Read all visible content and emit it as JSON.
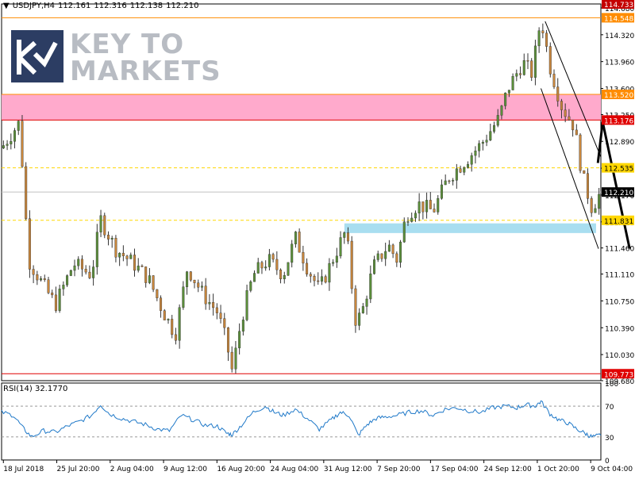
{
  "header": {
    "dropdown_icon": "triangle-down-icon",
    "symbol": "USDJPY,H4",
    "open": "112.161",
    "high": "112.316",
    "low": "112.138",
    "close": "112.210"
  },
  "logo": {
    "line1": "KEY TO",
    "line2": "MARKETS",
    "mark_color": "#2c3d63",
    "text_color": "#b8bcc3"
  },
  "rsi": {
    "label": "RSI(14) 32.1770"
  },
  "chart_data": [
    {
      "type": "candlestick",
      "symbol": "USDJPY",
      "timeframe": "H4",
      "ylim": [
        109.68,
        114.733
      ],
      "y_ticks": [
        "114.680",
        "114.320",
        "113.960",
        "113.600",
        "113.250",
        "112.890",
        "112.530",
        "112.170",
        "111.810",
        "111.460",
        "111.110",
        "110.750",
        "110.390",
        "110.030",
        "109.680"
      ],
      "x_ticks": [
        "18 Jul 2018",
        "25 Jul 20:00",
        "2 Aug 04:00",
        "9 Aug 12:00",
        "16 Aug 20:00",
        "24 Aug 04:00",
        "31 Aug 12:00",
        "7 Sep 20:00",
        "17 Sep 04:00",
        "24 Sep 12:00",
        "1 Oct 20:00",
        "9 Oct 04:00"
      ],
      "price_path": [
        {
          "p": 0.0,
          "v": 112.8
        },
        {
          "p": 0.03,
          "v": 113.15
        },
        {
          "p": 0.045,
          "v": 111.3
        },
        {
          "p": 0.07,
          "v": 110.95
        },
        {
          "p": 0.09,
          "v": 110.7
        },
        {
          "p": 0.12,
          "v": 111.25
        },
        {
          "p": 0.15,
          "v": 111.1
        },
        {
          "p": 0.165,
          "v": 111.85
        },
        {
          "p": 0.19,
          "v": 111.45
        },
        {
          "p": 0.22,
          "v": 111.25
        },
        {
          "p": 0.245,
          "v": 111.05
        },
        {
          "p": 0.27,
          "v": 110.6
        },
        {
          "p": 0.29,
          "v": 110.3
        },
        {
          "p": 0.31,
          "v": 111.2
        },
        {
          "p": 0.335,
          "v": 110.85
        },
        {
          "p": 0.36,
          "v": 110.6
        },
        {
          "p": 0.375,
          "v": 110.2
        },
        {
          "p": 0.385,
          "v": 109.8
        },
        {
          "p": 0.4,
          "v": 110.5
        },
        {
          "p": 0.42,
          "v": 111.1
        },
        {
          "p": 0.445,
          "v": 111.3
        },
        {
          "p": 0.47,
          "v": 111.1
        },
        {
          "p": 0.49,
          "v": 111.6
        },
        {
          "p": 0.51,
          "v": 111.2
        },
        {
          "p": 0.53,
          "v": 110.9
        },
        {
          "p": 0.555,
          "v": 111.35
        },
        {
          "p": 0.575,
          "v": 111.7
        },
        {
          "p": 0.59,
          "v": 110.5
        },
        {
          "p": 0.6,
          "v": 110.55
        },
        {
          "p": 0.62,
          "v": 111.2
        },
        {
          "p": 0.645,
          "v": 111.5
        },
        {
          "p": 0.66,
          "v": 111.3
        },
        {
          "p": 0.675,
          "v": 111.9
        },
        {
          "p": 0.695,
          "v": 112.05
        },
        {
          "p": 0.72,
          "v": 111.95
        },
        {
          "p": 0.745,
          "v": 112.4
        },
        {
          "p": 0.77,
          "v": 112.6
        },
        {
          "p": 0.8,
          "v": 112.85
        },
        {
          "p": 0.83,
          "v": 113.2
        },
        {
          "p": 0.845,
          "v": 113.6
        },
        {
          "p": 0.87,
          "v": 113.95
        },
        {
          "p": 0.885,
          "v": 113.8
        },
        {
          "p": 0.9,
          "v": 114.55
        },
        {
          "p": 0.915,
          "v": 113.9
        },
        {
          "p": 0.935,
          "v": 113.35
        },
        {
          "p": 0.955,
          "v": 113.1
        },
        {
          "p": 0.97,
          "v": 112.4
        },
        {
          "p": 0.985,
          "v": 112.0
        },
        {
          "p": 1.0,
          "v": 112.21
        }
      ],
      "horizontal_levels": [
        {
          "value": 114.733,
          "label": "114.733",
          "color": "#c40000",
          "box": true,
          "line": false
        },
        {
          "value": 114.548,
          "label": "114.548",
          "color": "#ff8c00",
          "box": true,
          "line": true,
          "dash": false
        },
        {
          "value": 113.52,
          "label": "113.520",
          "color": "#ff8c00",
          "box": true,
          "line": true,
          "dash": false
        },
        {
          "value": 113.176,
          "label": "113.176",
          "color": "#e00000",
          "box": true,
          "line": true,
          "dash": false
        },
        {
          "value": 112.535,
          "label": "112.535",
          "color": "#ffd700",
          "box": true,
          "line": true,
          "dash": true
        },
        {
          "value": 112.21,
          "label": "112.210",
          "color": "#000000",
          "box": true,
          "line": true,
          "dash": false,
          "line_color": "#c0c0c0"
        },
        {
          "value": 111.831,
          "label": "111.831",
          "color": "#ffd700",
          "box": true,
          "line": true,
          "dash": true
        },
        {
          "value": 109.773,
          "label": "109.773",
          "color": "#e00000",
          "box": true,
          "line": true,
          "dash": false
        }
      ],
      "zones": [
        {
          "name": "resistance-zone",
          "y_from": 113.176,
          "y_to": 113.52,
          "p_from": 0.0,
          "p_to": 1.0,
          "color": "#ffaacc"
        },
        {
          "name": "support-zone",
          "y_from": 111.66,
          "y_to": 111.79,
          "p_from": 0.572,
          "p_to": 0.992,
          "color": "#a9def0"
        }
      ],
      "trendlines": [
        {
          "p1": 0.907,
          "v1": 114.5,
          "p2": 1.0,
          "v2": 112.68,
          "color": "#000000"
        },
        {
          "p1": 0.9,
          "v1": 113.6,
          "p2": 0.996,
          "v2": 111.45,
          "color": "#000000"
        }
      ],
      "projection_arrows": [
        {
          "p1": 0.995,
          "v1": 112.6,
          "p2": 1.003,
          "v2": 113.15
        },
        {
          "p1": 1.003,
          "v1": 113.15,
          "p2": 1.048,
          "v2": 111.45
        }
      ]
    },
    {
      "type": "line",
      "name": "RSI(14)",
      "ylim": [
        0,
        100
      ],
      "y_ticks": [
        "100",
        "70",
        "30",
        "0"
      ],
      "levels": [
        70,
        30
      ],
      "series": [
        {
          "name": "RSI(14)",
          "color": "#1e78c8",
          "values": [
            {
              "p": 0.0,
              "v": 62
            },
            {
              "p": 0.02,
              "v": 58
            },
            {
              "p": 0.035,
              "v": 42
            },
            {
              "p": 0.05,
              "v": 30
            },
            {
              "p": 0.07,
              "v": 38
            },
            {
              "p": 0.09,
              "v": 36
            },
            {
              "p": 0.11,
              "v": 44
            },
            {
              "p": 0.13,
              "v": 50
            },
            {
              "p": 0.15,
              "v": 58
            },
            {
              "p": 0.165,
              "v": 72
            },
            {
              "p": 0.18,
              "v": 60
            },
            {
              "p": 0.2,
              "v": 54
            },
            {
              "p": 0.22,
              "v": 50
            },
            {
              "p": 0.24,
              "v": 46
            },
            {
              "p": 0.26,
              "v": 40
            },
            {
              "p": 0.28,
              "v": 38
            },
            {
              "p": 0.3,
              "v": 58
            },
            {
              "p": 0.32,
              "v": 52
            },
            {
              "p": 0.34,
              "v": 45
            },
            {
              "p": 0.36,
              "v": 44
            },
            {
              "p": 0.375,
              "v": 35
            },
            {
              "p": 0.385,
              "v": 33
            },
            {
              "p": 0.4,
              "v": 45
            },
            {
              "p": 0.42,
              "v": 62
            },
            {
              "p": 0.44,
              "v": 70
            },
            {
              "p": 0.455,
              "v": 62
            },
            {
              "p": 0.47,
              "v": 58
            },
            {
              "p": 0.49,
              "v": 66
            },
            {
              "p": 0.51,
              "v": 54
            },
            {
              "p": 0.53,
              "v": 40
            },
            {
              "p": 0.55,
              "v": 52
            },
            {
              "p": 0.565,
              "v": 62
            },
            {
              "p": 0.58,
              "v": 58
            },
            {
              "p": 0.595,
              "v": 32
            },
            {
              "p": 0.61,
              "v": 46
            },
            {
              "p": 0.625,
              "v": 54
            },
            {
              "p": 0.64,
              "v": 56
            },
            {
              "p": 0.66,
              "v": 58
            },
            {
              "p": 0.68,
              "v": 62
            },
            {
              "p": 0.7,
              "v": 64
            },
            {
              "p": 0.72,
              "v": 58
            },
            {
              "p": 0.74,
              "v": 66
            },
            {
              "p": 0.76,
              "v": 68
            },
            {
              "p": 0.78,
              "v": 64
            },
            {
              "p": 0.8,
              "v": 62
            },
            {
              "p": 0.82,
              "v": 68
            },
            {
              "p": 0.84,
              "v": 70
            },
            {
              "p": 0.86,
              "v": 68
            },
            {
              "p": 0.875,
              "v": 72
            },
            {
              "p": 0.89,
              "v": 70
            },
            {
              "p": 0.9,
              "v": 76
            },
            {
              "p": 0.915,
              "v": 60
            },
            {
              "p": 0.93,
              "v": 52
            },
            {
              "p": 0.945,
              "v": 48
            },
            {
              "p": 0.96,
              "v": 40
            },
            {
              "p": 0.975,
              "v": 34
            },
            {
              "p": 0.985,
              "v": 30
            },
            {
              "p": 1.0,
              "v": 32
            }
          ]
        }
      ]
    }
  ]
}
